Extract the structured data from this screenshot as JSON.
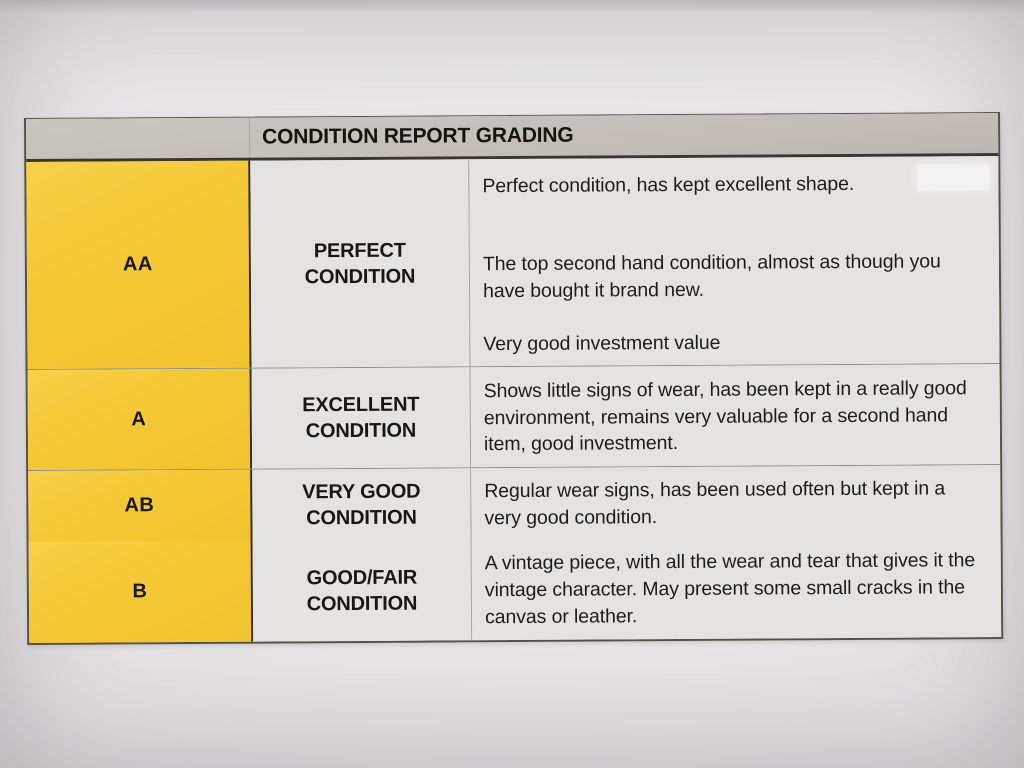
{
  "document": {
    "header": {
      "title": "CONDITION REPORT GRADING"
    },
    "rows": [
      {
        "grade": "AA",
        "condition": "PERFECT CONDITION",
        "descriptions": [
          "Perfect condition, has kept excellent shape.",
          "The top second hand condition, almost as though you have bought it brand new.",
          "Very good investment value"
        ]
      },
      {
        "grade": "A",
        "condition": "EXCELLENT CONDITION",
        "descriptions": [
          "Shows little signs of wear, has been kept in a really good environment, remains very valuable for a second hand item, good investment."
        ]
      },
      {
        "grade": "AB",
        "condition": "VERY GOOD CONDITION",
        "descriptions": [
          "Regular wear signs, has been used often but kept in a very good condition."
        ]
      },
      {
        "grade": "B",
        "condition": "GOOD/FAIR CONDITION",
        "descriptions": [
          "A vintage piece, with all the wear and tear that gives it the vintage character. May present some small cracks in the canvas or leather."
        ]
      }
    ],
    "colors": {
      "grade_column_yellow": "#f4c835",
      "header_band_gray": "#c3bfb8",
      "cell_background": "#e5e3e2",
      "paper_background": "#e8e6e7",
      "text": "#1b1a18"
    }
  }
}
